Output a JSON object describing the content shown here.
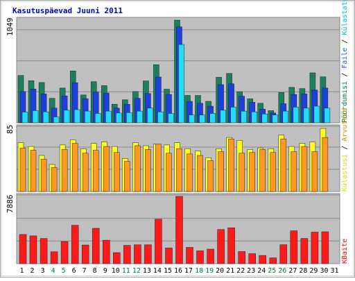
{
  "title": "Kasutuspäevad Juuni 2011",
  "colors": {
    "frame_outer": "#a0a0a0",
    "frame_inner": "#d8d8d8",
    "panel_bg": "#c0c0c0",
    "grid": "#888888",
    "title": "#0000cc",
    "bar_outline": "#222222",
    "tick_default": "#000000",
    "tick_weekend": "#008040"
  },
  "side_labels": {
    "top": [
      {
        "text": "Pöördumisi",
        "color": "#008040"
      },
      {
        "text": " / ",
        "color": "#000000"
      },
      {
        "text": "Faile",
        "color": "#1e5aff"
      },
      {
        "text": " / ",
        "color": "#000000"
      },
      {
        "text": "Külastatud lehekülgi",
        "color": "#00bbee"
      }
    ],
    "middle": [
      {
        "text": "Külastusi",
        "color": "#dddd00"
      },
      {
        "text": " / ",
        "color": "#000000"
      },
      {
        "text": "Arvuteid",
        "color": "#ee8800"
      }
    ],
    "bottom": [
      {
        "text": "KBaite",
        "color": "#ff0000"
      }
    ]
  },
  "chart_data": {
    "type": "bar",
    "title": "Kasutuspäevad Juuni 2011",
    "x_ticks": [
      "1",
      "2",
      "3",
      "4",
      "5",
      "6",
      "7",
      "8",
      "9",
      "10",
      "11",
      "12",
      "13",
      "14",
      "15",
      "16",
      "17",
      "18",
      "19",
      "20",
      "21",
      "22",
      "23",
      "24",
      "25",
      "26",
      "27",
      "28",
      "29",
      "30",
      "31"
    ],
    "weekend_ticks": [
      "4",
      "5",
      "11",
      "12",
      "18",
      "19",
      "25",
      "26"
    ],
    "panels": [
      {
        "id": "top",
        "y_max_label": "1049",
        "ylim": [
          0,
          1049
        ],
        "series": [
          {
            "name": "Pöördumisi",
            "color": "#1a8060",
            "values": [
              484,
              430,
              412,
              250,
              355,
              530,
              285,
              420,
              380,
              190,
              235,
              320,
              428,
              594,
              344,
              1049,
              280,
              280,
              220,
              465,
              505,
              318,
              245,
              200,
              125,
              310,
              362,
              350,
              510,
              470
            ]
          },
          {
            "name": "Faile",
            "color": "#1e3fe0",
            "values": [
              320,
              345,
              295,
              150,
              275,
              410,
              245,
              315,
              305,
              150,
              190,
              250,
              300,
              468,
              290,
              980,
              220,
              200,
              170,
              390,
              398,
              272,
              210,
              140,
              100,
              195,
              290,
              295,
              335,
              355
            ]
          },
          {
            "name": "Külastatud lehekülgi",
            "color": "#22ddff",
            "values": [
              110,
              125,
              112,
              60,
              128,
              135,
              120,
              96,
              120,
              100,
              104,
              120,
              150,
              112,
              96,
              800,
              80,
              80,
              96,
              128,
              160,
              120,
              112,
              90,
              80,
              120,
              160,
              150,
              170,
              150
            ]
          }
        ]
      },
      {
        "id": "middle",
        "y_max_label": "85",
        "ylim": [
          0,
          85
        ],
        "series": [
          {
            "name": "Külastusi",
            "color": "#ffff22",
            "values": [
              65,
              60,
              48,
              36,
              62,
              69,
              57,
              64,
              66,
              60,
              44,
              65,
              61,
              63,
              62,
              65,
              57,
              54,
              45,
              57,
              72,
              68,
              56,
              58,
              57,
              75,
              60,
              64,
              66,
              84
            ]
          },
          {
            "name": "Arvuteid",
            "color": "#ff9922",
            "values": [
              58,
              55,
              43,
              32,
              56,
              64,
              51,
              55,
              60,
              52,
              40,
              61,
              56,
              63,
              51,
              57,
              50,
              48,
              41,
              53,
              70,
              51,
              52,
              56,
              52,
              70,
              53,
              60,
              53,
              72
            ]
          }
        ]
      },
      {
        "id": "bottom",
        "y_max_label": "7886",
        "ylim": [
          0,
          7886
        ],
        "series": [
          {
            "name": "KBaite",
            "color": "#ff1a1a",
            "values": [
              3420,
              3260,
              2950,
              1400,
              2590,
              4500,
              2190,
              4150,
              2760,
              1290,
              2150,
              2210,
              2210,
              5210,
              1840,
              7886,
              1910,
              1500,
              1710,
              4000,
              4200,
              1420,
              1180,
              970,
              680,
              2220,
              3850,
              2960,
              3700,
              3740
            ]
          }
        ]
      }
    ]
  }
}
